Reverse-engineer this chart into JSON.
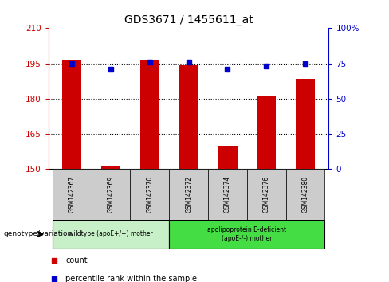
{
  "title": "GDS3671 / 1455611_at",
  "samples": [
    "GSM142367",
    "GSM142369",
    "GSM142370",
    "GSM142372",
    "GSM142374",
    "GSM142376",
    "GSM142380"
  ],
  "counts": [
    196.5,
    151.5,
    196.5,
    194.5,
    160.0,
    181.0,
    188.5
  ],
  "percentile_ranks": [
    75,
    71,
    76,
    76,
    71,
    73,
    75
  ],
  "ylim_left": [
    150,
    210
  ],
  "ylim_right": [
    0,
    100
  ],
  "yticks_left": [
    150,
    165,
    180,
    195,
    210
  ],
  "yticks_right": [
    0,
    25,
    50,
    75,
    100
  ],
  "ytick_labels_right": [
    "0",
    "25",
    "50",
    "75",
    "100%"
  ],
  "group1_indices": [
    0,
    1,
    2
  ],
  "group2_indices": [
    3,
    4,
    5,
    6
  ],
  "group1_label": "wildtype (apoE+/+) mother",
  "group2_label": "apolipoprotein E-deficient\n(apoE-/-) mother",
  "group1_color": "#c8f0c8",
  "group2_color": "#44dd44",
  "bar_color": "#cc0000",
  "marker_color": "#0000cc",
  "genotype_label": "genotype/variation",
  "legend_count": "count",
  "legend_pct": "percentile rank within the sample",
  "background_color": "#ffffff",
  "tick_box_color": "#cccccc",
  "left_axis_color": "#cc0000",
  "right_axis_color": "#0000cc",
  "bar_bottom": 150
}
